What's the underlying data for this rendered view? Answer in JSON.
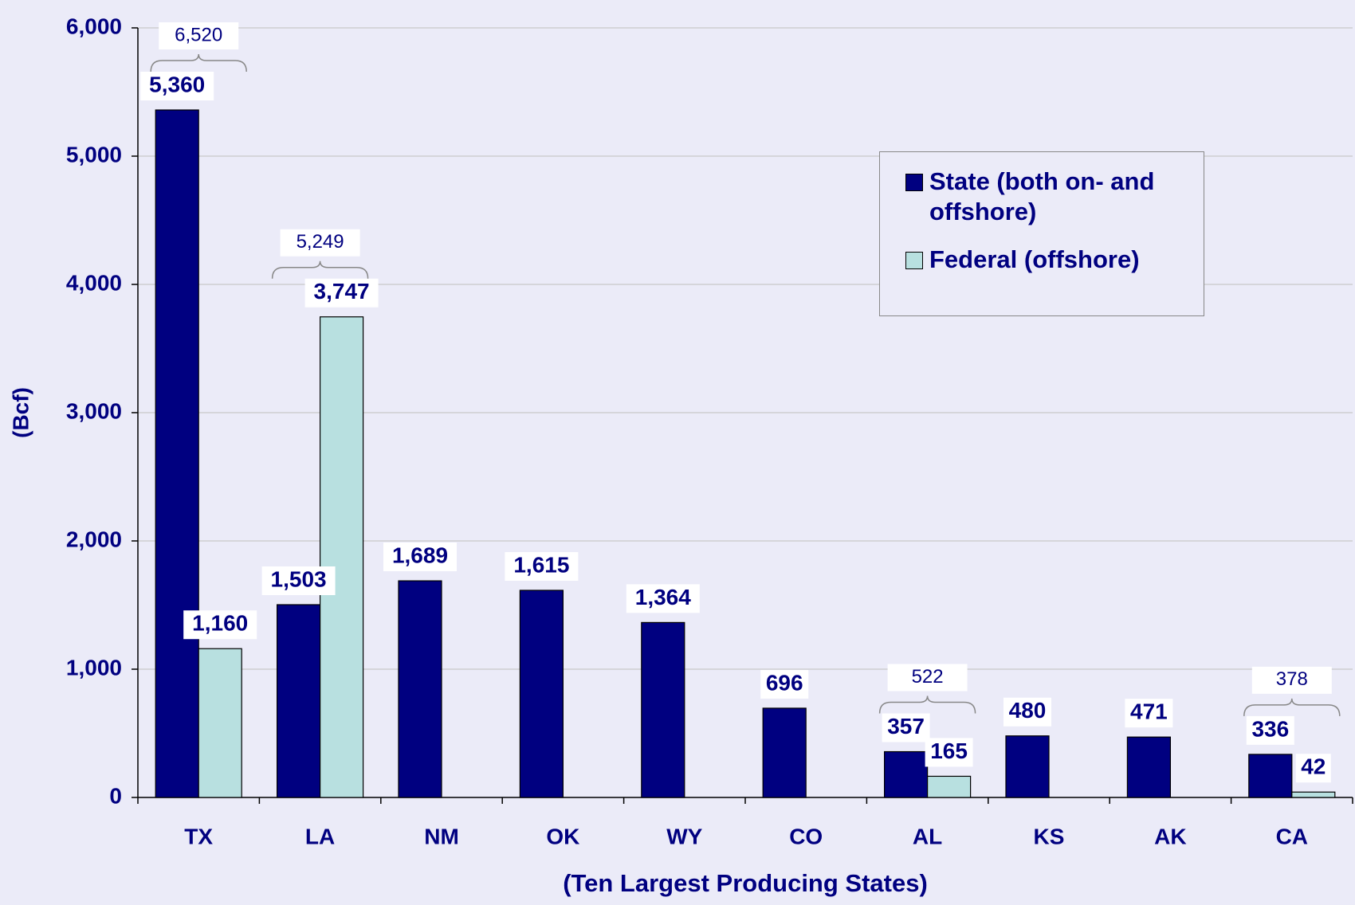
{
  "chart_data": {
    "type": "bar",
    "x_label": "(Ten Largest Producing States)",
    "y_label": "(Bcf)",
    "categories": [
      "TX",
      "LA",
      "NM",
      "OK",
      "WY",
      "CO",
      "AL",
      "KS",
      "AK",
      "CA"
    ],
    "series": [
      {
        "name": "State (both on- and offshore)",
        "color": "#000080",
        "values": [
          5360,
          1503,
          1689,
          1615,
          1364,
          696,
          357,
          480,
          471,
          336
        ],
        "value_labels": [
          "5,360",
          "1,503",
          "1,689",
          "1,615",
          "1,364",
          "696",
          "357",
          "480",
          "471",
          "336"
        ]
      },
      {
        "name": "Federal (offshore)",
        "color": "#b8e0e0",
        "values": [
          1160,
          3747,
          null,
          null,
          null,
          null,
          165,
          null,
          null,
          42
        ],
        "value_labels": [
          "1,160",
          "3,747",
          null,
          null,
          null,
          null,
          "165",
          null,
          null,
          "42"
        ]
      }
    ],
    "totals": {
      "values": [
        6520,
        5249,
        null,
        null,
        null,
        null,
        522,
        null,
        null,
        378
      ],
      "value_labels": [
        "6,520",
        "5,249",
        null,
        null,
        null,
        null,
        "522",
        null,
        null,
        "378"
      ]
    },
    "ylim": [
      0,
      6000
    ],
    "yticks": [
      0,
      {
        "value": 1000,
        "label": "1,000"
      },
      {
        "value": 2000,
        "label": "2,000"
      },
      {
        "value": 3000,
        "label": "3,000"
      },
      {
        "value": 4000,
        "label": "4,000"
      },
      {
        "value": 5000,
        "label": "5,000"
      },
      {
        "value": 6000,
        "label": "6,000"
      }
    ],
    "grid": true,
    "legend": "upper right"
  }
}
